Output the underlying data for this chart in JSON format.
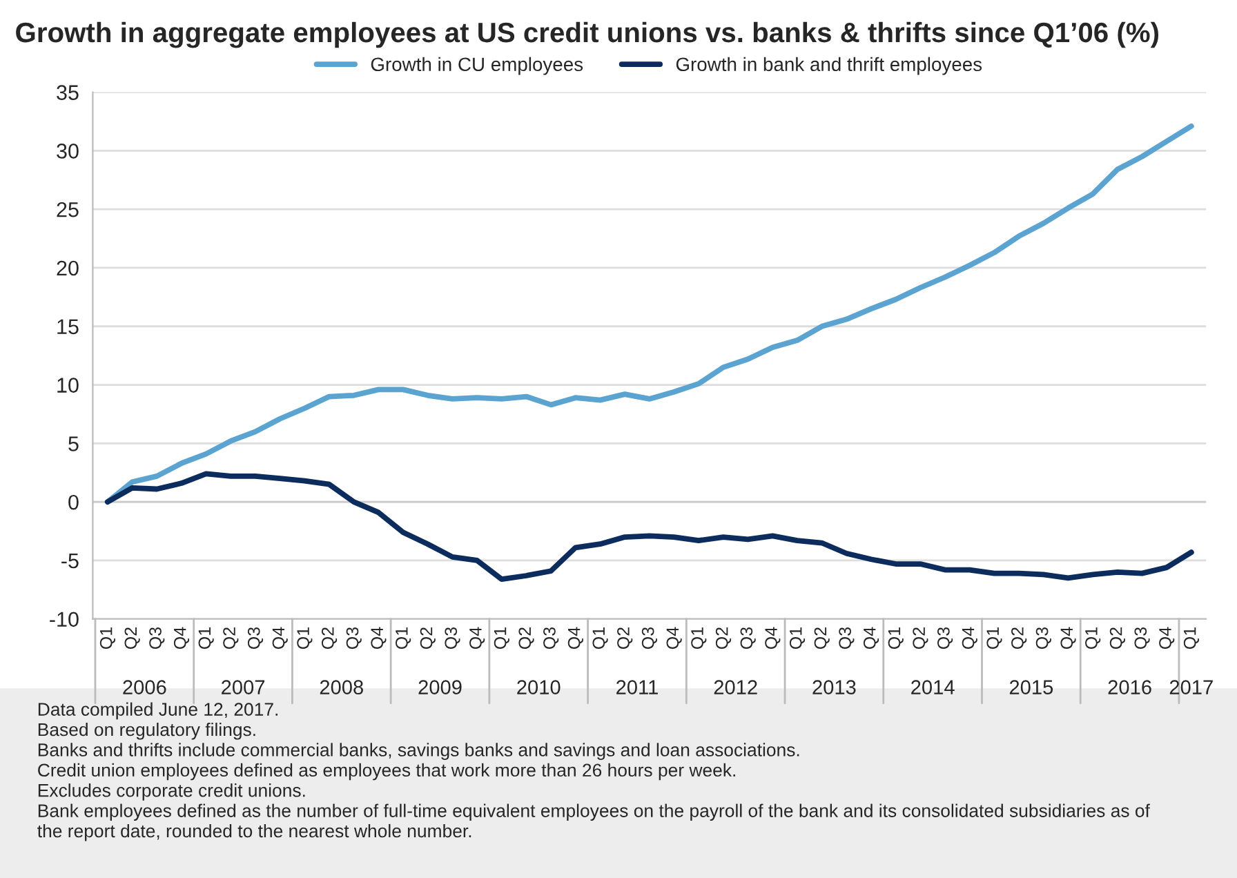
{
  "chart_data": {
    "type": "line",
    "title": "Growth in aggregate employees at US credit unions vs. banks & thrifts since Q1’06 (%)",
    "categories": [
      "Q1",
      "Q2",
      "Q3",
      "Q4",
      "Q1",
      "Q2",
      "Q3",
      "Q4",
      "Q1",
      "Q2",
      "Q3",
      "Q4",
      "Q1",
      "Q2",
      "Q3",
      "Q4",
      "Q1",
      "Q2",
      "Q3",
      "Q4",
      "Q1",
      "Q2",
      "Q3",
      "Q4",
      "Q1",
      "Q2",
      "Q3",
      "Q4",
      "Q1",
      "Q2",
      "Q3",
      "Q4",
      "Q1",
      "Q2",
      "Q3",
      "Q4",
      "Q1",
      "Q2",
      "Q3",
      "Q4",
      "Q1",
      "Q2",
      "Q3",
      "Q4",
      "Q1"
    ],
    "series": [
      {
        "name": "Growth in CU employees",
        "color": "#5ba3d0",
        "values": [
          0,
          1.7,
          2.2,
          3.3,
          4.1,
          5.2,
          6.0,
          7.1,
          8.0,
          9.0,
          9.1,
          9.6,
          9.6,
          9.1,
          8.8,
          8.9,
          8.8,
          9.0,
          8.3,
          8.9,
          8.7,
          9.2,
          8.8,
          9.4,
          10.1,
          11.5,
          12.2,
          13.2,
          13.8,
          15.0,
          15.6,
          16.5,
          17.3,
          18.3,
          19.2,
          20.2,
          21.3,
          22.7,
          23.8,
          25.1,
          26.3,
          28.4,
          29.5,
          30.8,
          32.1
        ]
      },
      {
        "name": "Growth in bank and thrift employees",
        "color": "#0d2c5e",
        "values": [
          0,
          1.2,
          1.1,
          1.6,
          2.4,
          2.2,
          2.2,
          2.0,
          1.8,
          1.5,
          0,
          -0.9,
          -2.6,
          -3.6,
          -4.7,
          -5.0,
          -6.6,
          -6.3,
          -5.9,
          -3.9,
          -3.6,
          -3.0,
          -2.9,
          -3.0,
          -3.3,
          -3.0,
          -3.2,
          -2.9,
          -3.3,
          -3.5,
          -4.4,
          -4.9,
          -5.3,
          -5.3,
          -5.8,
          -5.8,
          -6.1,
          -6.1,
          -6.2,
          -6.5,
          -6.2,
          -6.0,
          -6.1,
          -5.6,
          -4.3
        ]
      }
    ],
    "ylim": [
      -10,
      35
    ],
    "yticks": [
      -10,
      -5,
      0,
      5,
      10,
      15,
      20,
      25,
      30,
      35
    ],
    "grid": "y",
    "legend": "top",
    "marker": "none",
    "line_style": "solid",
    "annotations": [
      "2006",
      "2007",
      "2008",
      "2009",
      "2010",
      "2011",
      "2012",
      "2013",
      "2014",
      "2015",
      "2016",
      "2017",
      "Data compiled June 12, 2017.\nBased on regulatory filings.\nBanks and thrifts include commercial banks, savings banks and savings and loan associations.\nCredit union employees defined as employees that work more than 26 hours per week.\nExcludes corporate credit unions.\nBank employees defined as the number of full-time equivalent employees on the payroll of the bank and its consolidated subsidiaries as of\nthe report date, rounded to the nearest whole number."
    ]
  }
}
